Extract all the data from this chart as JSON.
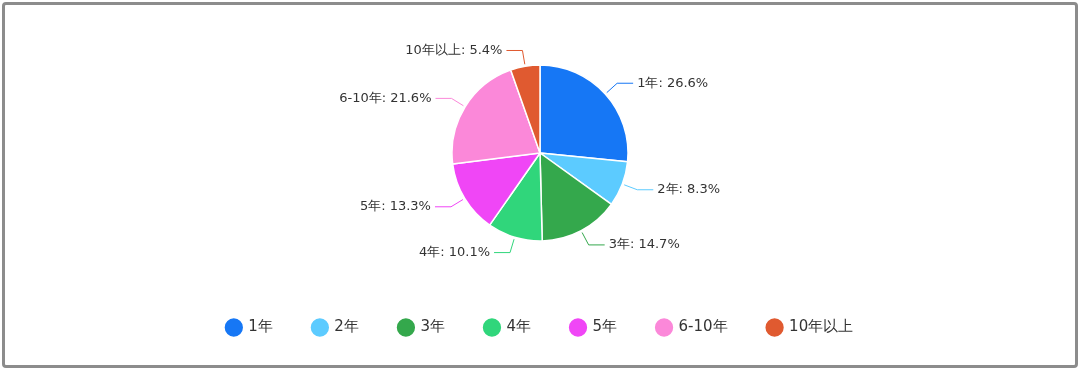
{
  "chart_data": {
    "type": "pie",
    "categories": [
      "1年",
      "2年",
      "3年",
      "4年",
      "5年",
      "6-10年",
      "10年以上"
    ],
    "values": [
      26.6,
      8.3,
      14.7,
      10.1,
      13.3,
      21.6,
      5.4
    ],
    "colors": [
      "#1677f5",
      "#5ccbff",
      "#34a84c",
      "#30d67b",
      "#f046f6",
      "#fb88d9",
      "#e05a30"
    ],
    "value_labels": [
      "1年: 26.6%",
      "2年: 8.3%",
      "3年: 14.7%",
      "4年: 10.1%",
      "5年: 13.3%",
      "6-10年: 21.6%",
      "10年以上: 5.4%"
    ],
    "legend": "bottom"
  }
}
